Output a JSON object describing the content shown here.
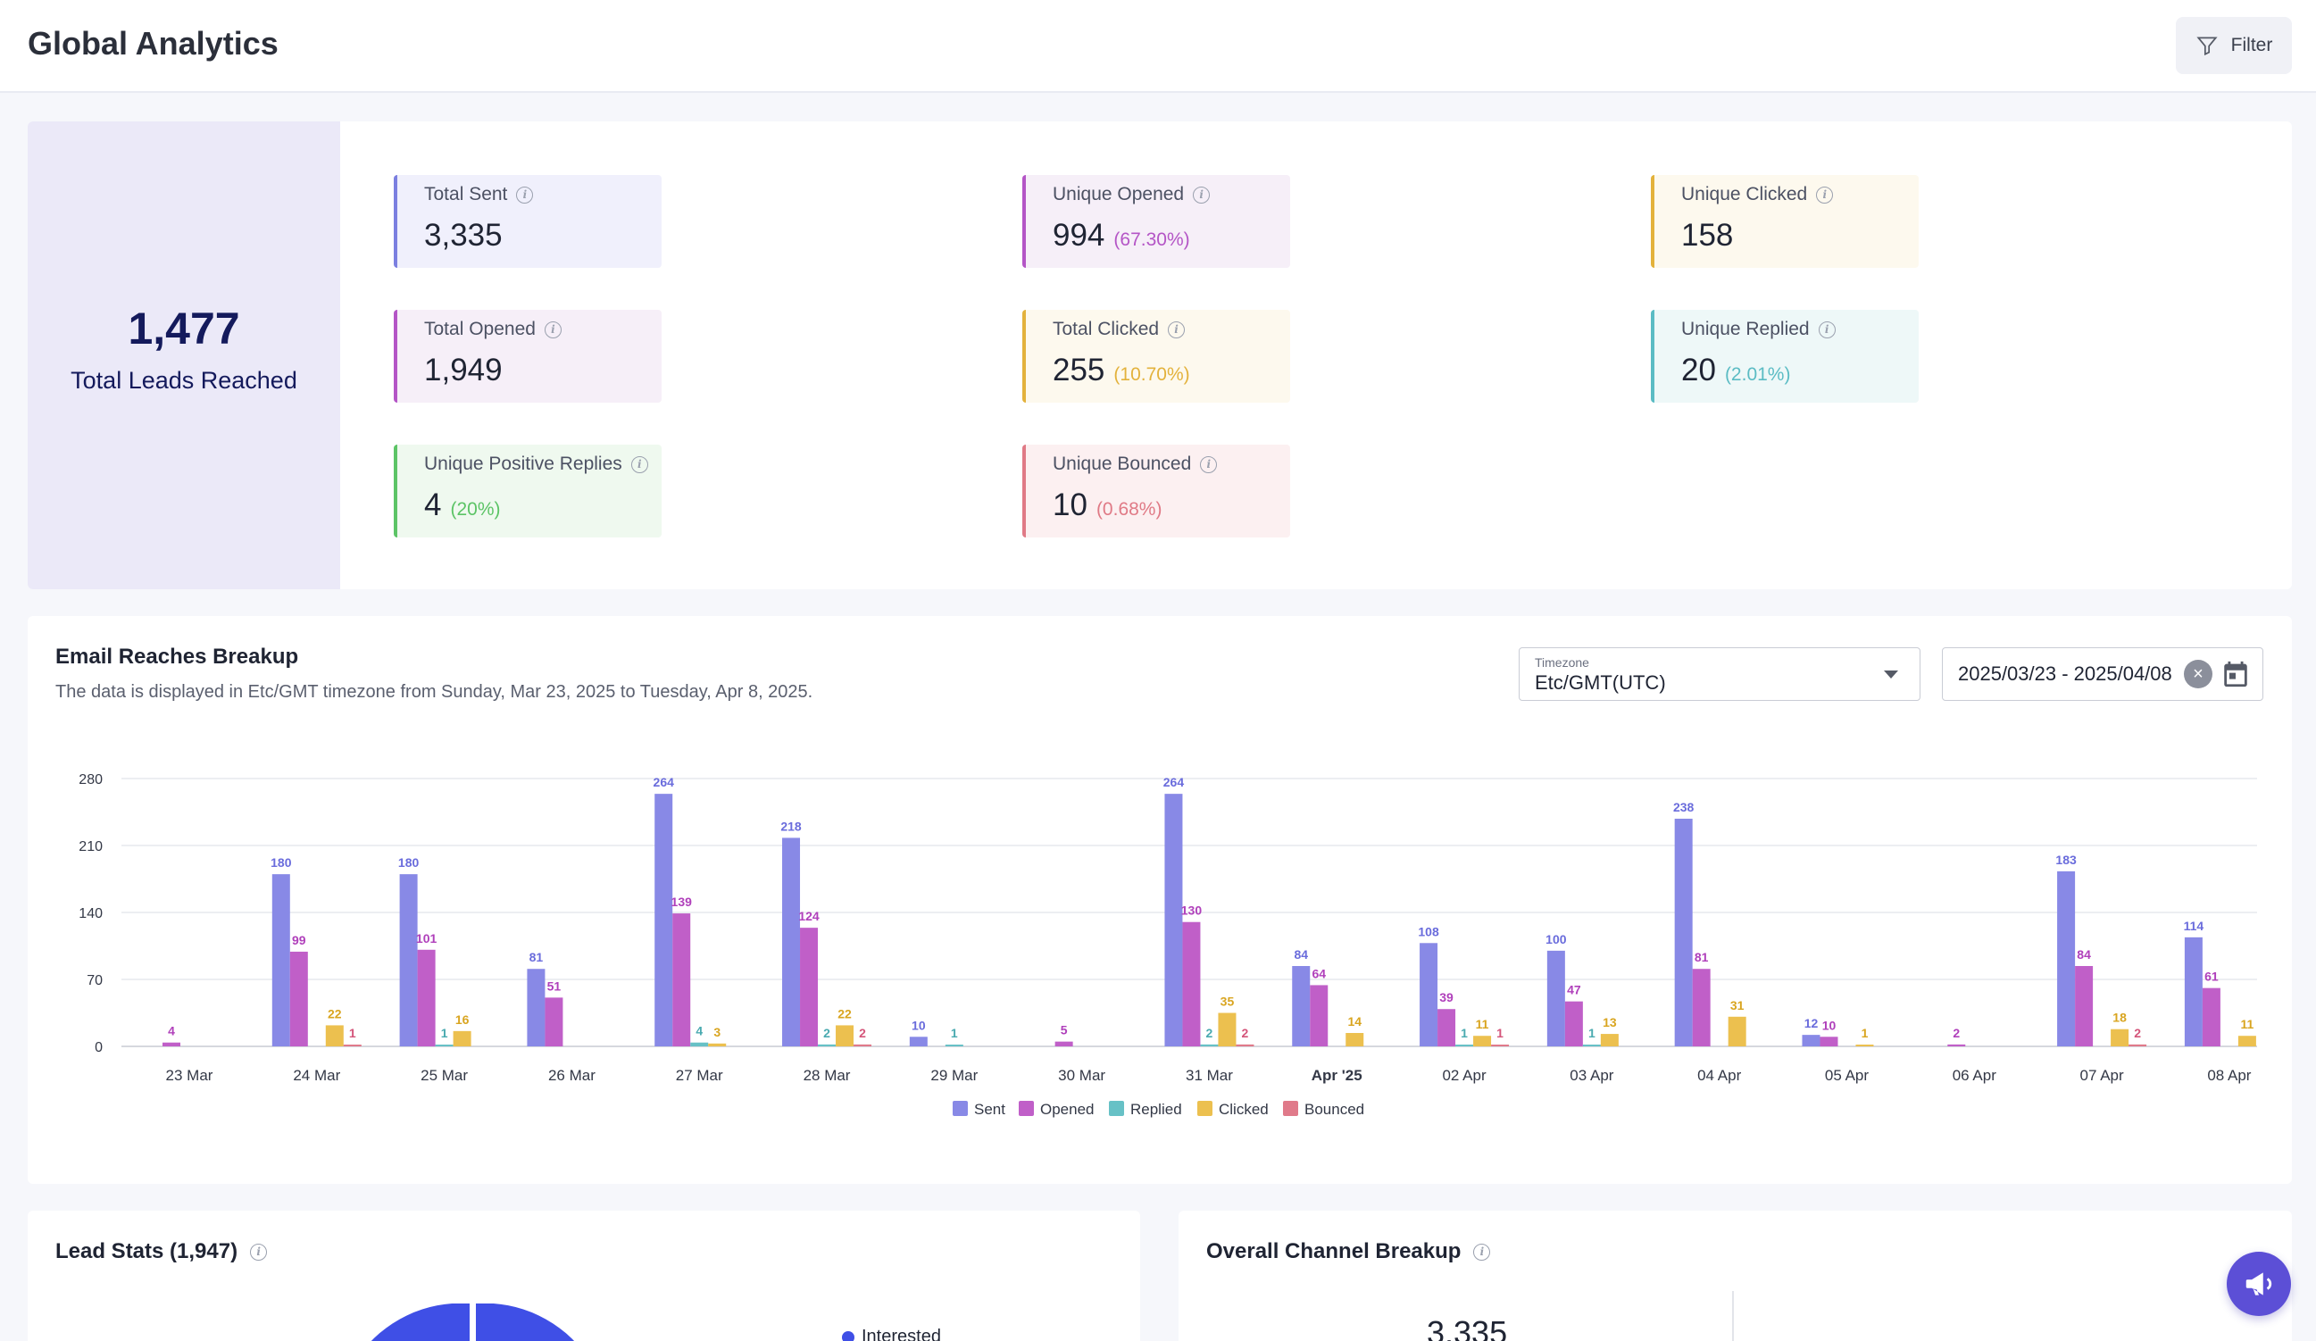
{
  "header": {
    "title": "Global Analytics",
    "filter_label": "Filter"
  },
  "summary": {
    "total_leads_value": "1,477",
    "total_leads_label": "Total Leads Reached"
  },
  "stat_cards": [
    {
      "label": "Total Sent",
      "value": "3,335",
      "pct": "",
      "color": "#7b7fe0",
      "bg": "#f0f0fc"
    },
    {
      "label": "Unique Opened",
      "value": "994",
      "pct": "(67.30%)",
      "color": "#b455c6",
      "bg": "#f6eff8"
    },
    {
      "label": "Unique Clicked",
      "value": "158",
      "pct": "",
      "color": "#e3b23c",
      "bg": "#fdf9ee"
    },
    {
      "label": "Total Opened",
      "value": "1,949",
      "pct": "",
      "color": "#b455c6",
      "bg": "#f6eff8"
    },
    {
      "label": "Total Clicked",
      "value": "255",
      "pct": "(10.70%)",
      "color": "#e3b23c",
      "bg": "#fdf9ee"
    },
    {
      "label": "Unique Replied",
      "value": "20",
      "pct": "(2.01%)",
      "color": "#5bbcc4",
      "bg": "#eef8f8"
    },
    {
      "label": "Unique Positive Replies",
      "value": "4",
      "pct": "(20%)",
      "color": "#5cc466",
      "bg": "#eff9ef"
    },
    {
      "label": "Unique Bounced",
      "value": "10",
      "pct": "(0.68%)",
      "color": "#e07a86",
      "bg": "#fcf0f1"
    }
  ],
  "chart_section": {
    "title": "Email Reaches Breakup",
    "subtitle": "The data is displayed in Etc/GMT timezone from Sunday, Mar 23, 2025 to Tuesday, Apr 8, 2025.",
    "timezone_label": "Timezone",
    "timezone_value": "Etc/GMT(UTC)",
    "date_range": "2025/03/23 - 2025/04/08"
  },
  "chart_data": {
    "type": "bar",
    "categories": [
      "23 Mar",
      "24 Mar",
      "25 Mar",
      "26 Mar",
      "27 Mar",
      "28 Mar",
      "29 Mar",
      "30 Mar",
      "31 Mar",
      "Apr '25",
      "02 Apr",
      "03 Apr",
      "04 Apr",
      "05 Apr",
      "06 Apr",
      "07 Apr",
      "08 Apr"
    ],
    "series": [
      {
        "name": "Sent",
        "color": "#8889e6",
        "label_color": "#6a6cdc",
        "values": [
          0,
          180,
          180,
          81,
          264,
          218,
          10,
          0,
          264,
          84,
          108,
          100,
          238,
          12,
          0,
          183,
          114
        ]
      },
      {
        "name": "Opened",
        "color": "#c05fc8",
        "label_color": "#b040bb",
        "values": [
          4,
          99,
          101,
          51,
          139,
          124,
          0,
          5,
          130,
          64,
          39,
          47,
          81,
          10,
          2,
          84,
          61
        ]
      },
      {
        "name": "Replied",
        "color": "#67c1c6",
        "label_color": "#4aaab0",
        "values": [
          0,
          0,
          1,
          0,
          4,
          2,
          1,
          0,
          2,
          0,
          1,
          1,
          0,
          0,
          0,
          0,
          0
        ]
      },
      {
        "name": "Clicked",
        "color": "#ecc04f",
        "label_color": "#d9a520",
        "values": [
          0,
          22,
          16,
          0,
          3,
          22,
          0,
          0,
          35,
          14,
          11,
          13,
          31,
          1,
          0,
          18,
          11
        ]
      },
      {
        "name": "Bounced",
        "color": "#e07a8a",
        "label_color": "#d4557a",
        "values": [
          0,
          1,
          0,
          0,
          0,
          2,
          0,
          0,
          2,
          0,
          1,
          0,
          0,
          0,
          0,
          2,
          0
        ]
      }
    ],
    "yticks": [
      0,
      70,
      140,
      210,
      280
    ],
    "ylim": [
      0,
      280
    ],
    "grid": true,
    "legend": "bottom-center"
  },
  "lead_stats": {
    "title": "Lead Stats (1,947)",
    "legend_interested": "Interested"
  },
  "channel_breakup": {
    "title": "Overall Channel Breakup",
    "value": "3,335"
  }
}
